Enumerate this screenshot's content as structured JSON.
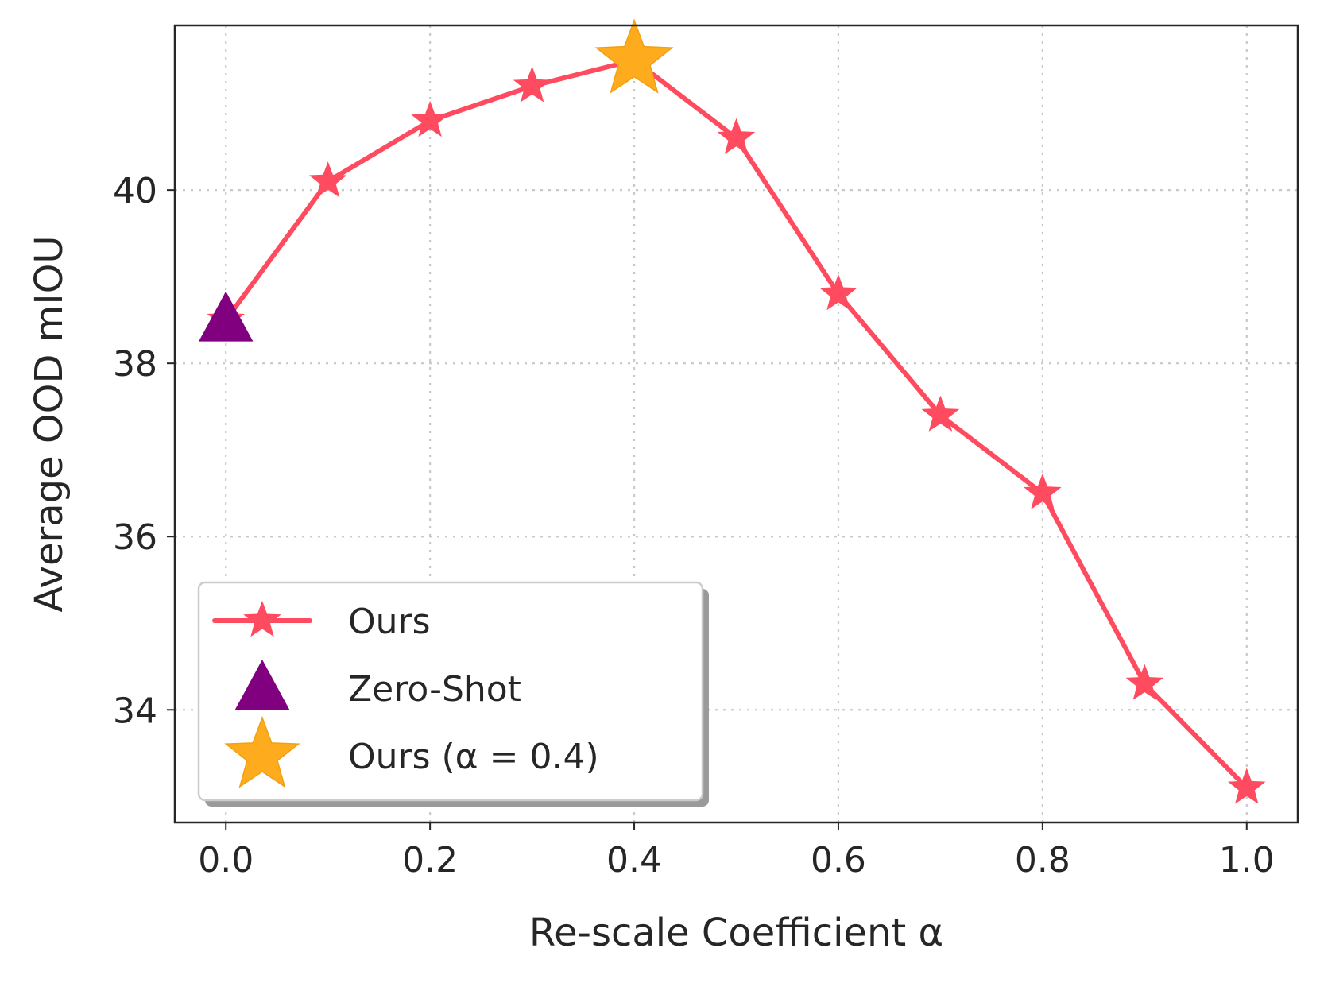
{
  "chart_data": {
    "type": "line",
    "xlabel": "Re-scale Coefficient α",
    "ylabel": "Average OOD mIOU",
    "xlim": [
      -0.05,
      1.05
    ],
    "ylim": [
      32.7,
      41.9
    ],
    "xticks": [
      0.0,
      0.2,
      0.4,
      0.6,
      0.8,
      1.0
    ],
    "xtick_labels": [
      "0.0",
      "0.2",
      "0.4",
      "0.6",
      "0.8",
      "1.0"
    ],
    "yticks": [
      34,
      36,
      38,
      40
    ],
    "ytick_labels": [
      "34",
      "36",
      "38",
      "40"
    ],
    "grid": true,
    "legend_position": "lower-left",
    "series": [
      {
        "name": "Ours",
        "kind": "line-with-star-markers",
        "color": "#ff4b5f",
        "x": [
          0.0,
          0.1,
          0.2,
          0.3,
          0.4,
          0.5,
          0.6,
          0.7,
          0.8,
          0.9,
          1.0
        ],
        "y": [
          38.5,
          40.1,
          40.8,
          41.2,
          41.5,
          40.6,
          38.8,
          37.4,
          36.5,
          34.3,
          33.1
        ]
      },
      {
        "name": "Zero-Shot",
        "kind": "triangle-marker",
        "color": "#800080",
        "x": [
          0.0
        ],
        "y": [
          38.5
        ]
      },
      {
        "name": "Ours (α = 0.4)",
        "kind": "large-star-marker",
        "color": "#ffab1e",
        "x": [
          0.4
        ],
        "y": [
          41.5
        ]
      }
    ]
  }
}
